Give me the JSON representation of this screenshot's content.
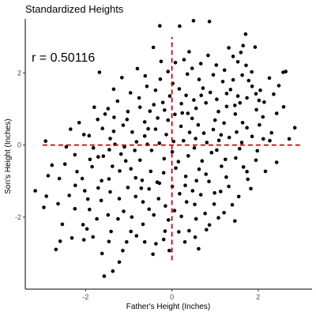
{
  "chart_data": {
    "type": "scatter",
    "title": "Standardized Heights",
    "xlabel": "Father's Height (Inches)",
    "ylabel": "Son's Height (Inches)",
    "annotation": "r = 0.50116",
    "xlim": [
      -3.4,
      3.25
    ],
    "ylim": [
      -4.0,
      3.5
    ],
    "x_ticks": [
      -2,
      0,
      2
    ],
    "x_tick_labels": [
      "-2",
      "0",
      "2"
    ],
    "y_ticks": [
      -2,
      0,
      2
    ],
    "y_tick_labels": [
      "-2",
      "0",
      "2"
    ],
    "grid": false,
    "point_color": "#000000",
    "reference_lines": {
      "color": "#cc0000",
      "style": "dashed",
      "horizontal": {
        "y": 0,
        "x_range": [
          -3.0,
          3.0
        ]
      },
      "vertical": {
        "x": 0,
        "y_range": [
          -3.2,
          3.0
        ]
      }
    },
    "series": [
      {
        "points": [
          [
            0.5,
            3.45
          ],
          [
            0.87,
            3.43
          ],
          [
            0.18,
            3.3
          ],
          [
            -0.28,
            3.31
          ],
          [
            1.71,
            3.08
          ],
          [
            1.65,
            2.76
          ],
          [
            1.93,
            2.72
          ],
          [
            -0.43,
            2.71
          ],
          [
            0.4,
            2.59
          ],
          [
            1.42,
            2.46
          ],
          [
            2.58,
            2.02
          ],
          [
            -1.68,
            2.02
          ],
          [
            -1.16,
            1.87
          ],
          [
            -0.8,
            2.12
          ],
          [
            2.59,
            1.06
          ],
          [
            2.72,
            0.17
          ],
          [
            2.85,
            0.48
          ],
          [
            -2.35,
            0.44
          ],
          [
            -2.93,
            0.11
          ],
          [
            -2.78,
            -0.56
          ],
          [
            -3.17,
            -1.27
          ],
          [
            -2.91,
            -1.42
          ],
          [
            -2.97,
            -1.73
          ],
          [
            -2.64,
            -1.63
          ],
          [
            -2.54,
            -2.2
          ],
          [
            -2.59,
            -2.67
          ],
          [
            -2.32,
            -2.58
          ],
          [
            -2.69,
            -2.9
          ],
          [
            -1.97,
            -2.33
          ],
          [
            -1.41,
            -2.4
          ],
          [
            -1.62,
            -3.01
          ],
          [
            -1.14,
            -2.93
          ],
          [
            -1.22,
            -3.25
          ],
          [
            -1.37,
            -3.5
          ],
          [
            -1.05,
            -2.69
          ],
          [
            -0.63,
            -2.69
          ],
          [
            -0.37,
            -2.74
          ],
          [
            -0.44,
            -3.03
          ],
          [
            -0.16,
            -2.39
          ],
          [
            0.16,
            -2.41
          ],
          [
            0.4,
            -2.38
          ],
          [
            0.54,
            -2.56
          ],
          [
            0.87,
            -2.22
          ],
          [
            1.46,
            -2.11
          ],
          [
            -1.57,
            -3.64
          ],
          [
            0.8,
            -2.35
          ],
          [
            -0.95,
            -2.4
          ],
          [
            -2.06,
            -2.21
          ],
          [
            -1.91,
            -1.79
          ],
          [
            -1.64,
            -1.54
          ],
          [
            -1.12,
            -1.84
          ],
          [
            -0.53,
            -1.78
          ],
          [
            0.06,
            -1.82
          ],
          [
            0.53,
            -1.65
          ],
          [
            0.98,
            -1.64
          ],
          [
            1.4,
            -1.66
          ],
          [
            -2.08,
            -0.93
          ],
          [
            -2.02,
            -1.27
          ],
          [
            -1.85,
            -0.6
          ],
          [
            -1.46,
            -0.94
          ],
          [
            -0.84,
            -0.91
          ],
          [
            -0.29,
            -1.06
          ],
          [
            0.31,
            -1.12
          ],
          [
            0.86,
            -1.01
          ],
          [
            1.32,
            -1.15
          ],
          [
            1.76,
            -0.95
          ],
          [
            2.17,
            -0.73
          ],
          [
            2.43,
            -0.48
          ],
          [
            -2.25,
            -0.27
          ],
          [
            -1.71,
            -0.33
          ],
          [
            -1.18,
            -0.25
          ],
          [
            -0.74,
            -0.42
          ],
          [
            -0.18,
            -0.38
          ],
          [
            0.38,
            -0.3
          ],
          [
            0.92,
            -0.21
          ],
          [
            1.48,
            -0.36
          ],
          [
            1.98,
            -0.16
          ],
          [
            2.27,
            0.12
          ],
          [
            -1.92,
            0.26
          ],
          [
            -1.43,
            0.18
          ],
          [
            -0.92,
            0.36
          ],
          [
            -0.38,
            0.44
          ],
          [
            0.21,
            0.52
          ],
          [
            0.74,
            0.33
          ],
          [
            1.21,
            0.61
          ],
          [
            1.74,
            0.48
          ],
          [
            2.11,
            0.78
          ],
          [
            -1.55,
            0.86
          ],
          [
            -1.04,
            0.71
          ],
          [
            -0.51,
            0.94
          ],
          [
            0.07,
            0.85
          ],
          [
            0.56,
            1.02
          ],
          [
            1.08,
            0.93
          ],
          [
            1.58,
            1.17
          ],
          [
            2.02,
            1.24
          ],
          [
            2.36,
            1.41
          ],
          [
            -1.26,
            1.22
          ],
          [
            -0.76,
            1.31
          ],
          [
            -0.21,
            1.18
          ],
          [
            0.33,
            1.38
          ],
          [
            0.89,
            1.46
          ],
          [
            1.36,
            1.54
          ],
          [
            1.86,
            1.63
          ],
          [
            -0.58,
            1.63
          ],
          [
            0.02,
            1.71
          ],
          [
            0.63,
            1.82
          ],
          [
            1.18,
            1.76
          ],
          [
            1.63,
            1.94
          ],
          [
            2.26,
            1.86
          ],
          [
            -0.09,
            2.04
          ],
          [
            0.47,
            2.13
          ],
          [
            1.03,
            2.22
          ],
          [
            1.53,
            2.31
          ],
          [
            -1.35,
            1.55
          ],
          [
            -1.8,
            1.05
          ],
          [
            -2.15,
            0.62
          ],
          [
            -2.45,
            -0.05
          ],
          [
            -2.61,
            -0.93
          ],
          [
            -2.38,
            -1.4
          ],
          [
            -1.74,
            -2.05
          ],
          [
            -1.25,
            -2.05
          ],
          [
            -0.67,
            -2.2
          ],
          [
            -0.08,
            -2.08
          ],
          [
            0.22,
            -1.98
          ],
          [
            -0.31,
            -1.49
          ],
          [
            -0.84,
            -1.43
          ],
          [
            -1.43,
            -1.3
          ],
          [
            -1.95,
            -1.5
          ],
          [
            0.18,
            -1.35
          ],
          [
            0.67,
            -1.38
          ],
          [
            1.13,
            -1.29
          ],
          [
            1.83,
            -1.21
          ],
          [
            -1.61,
            0.46
          ],
          [
            -1.13,
            0.55
          ],
          [
            -0.63,
            0.64
          ],
          [
            -0.09,
            0.69
          ],
          [
            0.47,
            0.74
          ],
          [
            1.0,
            0.69
          ],
          [
            1.47,
            0.86
          ],
          [
            1.96,
            0.98
          ],
          [
            -0.95,
            -0.66
          ],
          [
            -0.49,
            -0.73
          ],
          [
            0.09,
            -0.64
          ],
          [
            0.63,
            -0.67
          ],
          [
            1.15,
            -0.59
          ],
          [
            1.66,
            -0.61
          ],
          [
            -1.38,
            -0.59
          ],
          [
            -1.82,
            -0.08
          ],
          [
            -1.32,
            0.02
          ],
          [
            -0.82,
            0.09
          ],
          [
            -0.29,
            0.05
          ],
          [
            0.27,
            0.12
          ],
          [
            0.81,
            0.07
          ],
          [
            1.33,
            0.21
          ],
          [
            1.86,
            0.24
          ],
          [
            2.31,
            0.34
          ],
          [
            -0.47,
            -0.15
          ],
          [
            0.01,
            -0.19
          ],
          [
            0.52,
            -0.08
          ],
          [
            1.04,
            -0.14
          ],
          [
            1.57,
            -0.1
          ],
          [
            -1.02,
            -1.18
          ],
          [
            -0.53,
            -1.22
          ],
          [
            0.01,
            -1.15
          ],
          [
            0.48,
            -1.27
          ],
          [
            0.99,
            -1.33
          ],
          [
            -0.13,
            0.29
          ],
          [
            0.41,
            0.35
          ],
          [
            -0.63,
            0.25
          ],
          [
            0.96,
            0.43
          ],
          [
            1.5,
            0.36
          ],
          [
            -1.72,
            0.71
          ],
          [
            -2.04,
            0.29
          ],
          [
            -0.74,
            1.05
          ],
          [
            -0.17,
            0.97
          ],
          [
            0.37,
            0.88
          ],
          [
            0.79,
            1.17
          ],
          [
            1.27,
            1.07
          ],
          [
            1.74,
            1.31
          ],
          [
            2.14,
            1.19
          ],
          [
            -0.38,
            1.52
          ],
          [
            0.17,
            1.56
          ],
          [
            0.72,
            1.58
          ],
          [
            1.27,
            1.43
          ],
          [
            1.78,
            1.79
          ],
          [
            2.05,
            1.52
          ],
          [
            0.28,
            2.37
          ],
          [
            0.84,
            2.49
          ],
          [
            1.22,
            2.08
          ],
          [
            1.72,
            2.21
          ],
          [
            -0.96,
            1.45
          ],
          [
            -1.48,
            1.01
          ],
          [
            -2.2,
            -0.74
          ],
          [
            -1.63,
            -0.99
          ],
          [
            -1.21,
            -0.72
          ],
          [
            -0.69,
            -0.98
          ],
          [
            -0.19,
            -0.77
          ],
          [
            0.32,
            -0.87
          ],
          [
            0.79,
            -0.81
          ],
          [
            1.26,
            -0.89
          ],
          [
            1.74,
            -0.74
          ],
          [
            -2.24,
            -1.12
          ],
          [
            -1.71,
            -1.19
          ],
          [
            -1.22,
            -1.49
          ],
          [
            -0.67,
            -1.58
          ],
          [
            -0.15,
            -1.69
          ],
          [
            0.34,
            -1.58
          ],
          [
            0.77,
            -1.9
          ],
          [
            1.21,
            -1.88
          ],
          [
            -1.48,
            -1.94
          ],
          [
            -0.93,
            -2.0
          ],
          [
            -0.42,
            -1.94
          ],
          [
            0.56,
            -2.05
          ],
          [
            1.08,
            -2.02
          ],
          [
            -2.25,
            -1.77
          ],
          [
            -1.83,
            -2.55
          ],
          [
            -0.82,
            -2.52
          ],
          [
            -0.19,
            -2.62
          ],
          [
            0.62,
            -2.88
          ],
          [
            -1.02,
            0.93
          ],
          [
            -0.55,
            0.45
          ],
          [
            -1.35,
            0.38
          ],
          [
            -0.86,
            -0.15
          ],
          [
            -1.59,
            -0.31
          ],
          [
            -1.07,
            -0.44
          ],
          [
            0.15,
            -0.46
          ],
          [
            0.7,
            -0.44
          ],
          [
            1.24,
            -0.4
          ],
          [
            1.95,
            -0.42
          ],
          [
            -0.33,
            0.75
          ],
          [
            0.24,
            0.89
          ],
          [
            0.61,
            0.56
          ],
          [
            1.14,
            0.28
          ],
          [
            1.64,
            0.62
          ],
          [
            2.03,
            0.56
          ],
          [
            -0.05,
            1.36
          ],
          [
            0.51,
            1.25
          ],
          [
            1.04,
            1.27
          ],
          [
            1.53,
            1.36
          ],
          [
            -0.27,
            1.83
          ],
          [
            0.36,
            1.97
          ],
          [
            0.96,
            1.95
          ],
          [
            1.42,
            1.81
          ],
          [
            2.48,
            1.65
          ],
          [
            0.08,
            2.29
          ],
          [
            0.67,
            2.26
          ],
          [
            1.85,
            2.03
          ],
          [
            -0.71,
            -1.2
          ],
          [
            -0.34,
            -1.03
          ],
          [
            0.57,
            -0.99
          ],
          [
            1.55,
            -1.43
          ],
          [
            -1.1,
            -0.05
          ],
          [
            -0.57,
            0.02
          ],
          [
            0.04,
            0.1
          ],
          [
            0.55,
            0.18
          ],
          [
            1.09,
            0.13
          ],
          [
            1.62,
            0.07
          ],
          [
            2.12,
            0.17
          ],
          [
            -1.9,
            -0.4
          ],
          [
            -1.45,
            -0.13
          ],
          [
            -2.48,
            -0.53
          ],
          [
            -1.34,
            0.77
          ],
          [
            -0.42,
            1.12
          ],
          [
            0.22,
            1.15
          ],
          [
            0.68,
            1.38
          ],
          [
            1.46,
            1.1
          ],
          [
            1.95,
            1.42
          ],
          [
            -2.87,
            -0.85
          ],
          [
            2.64,
            2.04
          ],
          [
            2.43,
            0.88
          ],
          [
            -0.06,
            -2.93
          ],
          [
            0.3,
            -2.69
          ],
          [
            -0.25,
            2.32
          ],
          [
            -0.62,
            1.92
          ],
          [
            -1.46,
            -2.68
          ],
          [
            -2.04,
            -2.63
          ],
          [
            1.6,
            2.57
          ],
          [
            1.32,
            2.7
          ]
        ]
      }
    ]
  }
}
